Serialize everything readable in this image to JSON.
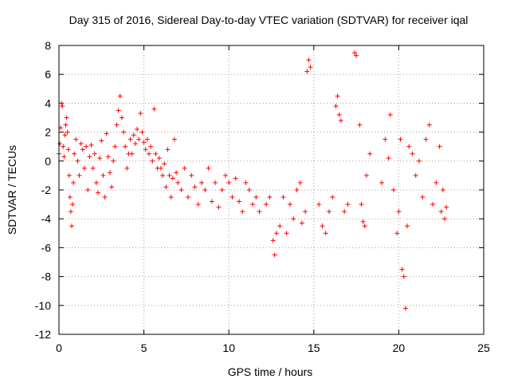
{
  "chart_data": {
    "type": "scatter",
    "title": "Day 315 of 2016, Sidereal Day-to-day VTEC variation (SDTVAR) for receiver iqal",
    "xlabel": "GPS time / hours",
    "ylabel": "SDTVAR / TECUs",
    "xlim": [
      0,
      25
    ],
    "ylim": [
      -12,
      8
    ],
    "xticks": [
      0,
      5,
      10,
      15,
      20,
      25
    ],
    "yticks": [
      -12,
      -10,
      -8,
      -6,
      -4,
      -2,
      0,
      2,
      4,
      6,
      8
    ],
    "grid": true,
    "marker": "+",
    "color": "#ff0000",
    "series": [
      {
        "name": "SDTVAR",
        "points": [
          [
            0.0,
            0.5
          ],
          [
            0.05,
            1.2
          ],
          [
            0.1,
            2.3
          ],
          [
            0.15,
            4.0
          ],
          [
            0.2,
            3.8
          ],
          [
            0.25,
            1.0
          ],
          [
            0.3,
            0.3
          ],
          [
            0.35,
            1.8
          ],
          [
            0.4,
            2.5
          ],
          [
            0.45,
            3.0
          ],
          [
            0.5,
            2.0
          ],
          [
            0.55,
            0.8
          ],
          [
            0.6,
            -1.0
          ],
          [
            0.65,
            -2.5
          ],
          [
            0.7,
            -3.5
          ],
          [
            0.75,
            -4.5
          ],
          [
            0.8,
            -3.0
          ],
          [
            0.85,
            -1.5
          ],
          [
            0.9,
            0.5
          ],
          [
            1.0,
            1.5
          ],
          [
            1.1,
            0.0
          ],
          [
            1.2,
            -1.0
          ],
          [
            1.3,
            1.2
          ],
          [
            1.4,
            0.8
          ],
          [
            1.5,
            -0.5
          ],
          [
            1.6,
            1.0
          ],
          [
            1.7,
            -2.0
          ],
          [
            1.8,
            0.3
          ],
          [
            1.9,
            1.1
          ],
          [
            2.0,
            -0.5
          ],
          [
            2.1,
            0.5
          ],
          [
            2.2,
            -1.5
          ],
          [
            2.3,
            -2.2
          ],
          [
            2.4,
            0.2
          ],
          [
            2.5,
            1.4
          ],
          [
            2.6,
            -1.0
          ],
          [
            2.7,
            -2.5
          ],
          [
            2.8,
            1.9
          ],
          [
            2.9,
            0.3
          ],
          [
            3.0,
            -0.8
          ],
          [
            3.1,
            -1.8
          ],
          [
            3.2,
            0.0
          ],
          [
            3.3,
            1.0
          ],
          [
            3.4,
            2.5
          ],
          [
            3.5,
            3.5
          ],
          [
            3.6,
            4.5
          ],
          [
            3.7,
            3.0
          ],
          [
            3.8,
            2.0
          ],
          [
            3.9,
            1.0
          ],
          [
            4.0,
            -0.5
          ],
          [
            4.1,
            0.5
          ],
          [
            4.2,
            1.5
          ],
          [
            4.3,
            0.5
          ],
          [
            4.4,
            1.8
          ],
          [
            4.5,
            1.2
          ],
          [
            4.6,
            2.2
          ],
          [
            4.7,
            1.5
          ],
          [
            4.8,
            3.3
          ],
          [
            4.9,
            2.0
          ],
          [
            5.0,
            1.3
          ],
          [
            5.1,
            0.8
          ],
          [
            5.2,
            1.5
          ],
          [
            5.3,
            0.5
          ],
          [
            5.4,
            1.0
          ],
          [
            5.5,
            0.0
          ],
          [
            5.6,
            3.6
          ],
          [
            5.7,
            0.5
          ],
          [
            5.8,
            -0.5
          ],
          [
            5.9,
            0.2
          ],
          [
            6.0,
            -0.5
          ],
          [
            6.1,
            -1.0
          ],
          [
            6.2,
            -0.2
          ],
          [
            6.3,
            -1.8
          ],
          [
            6.4,
            0.8
          ],
          [
            6.5,
            -1.0
          ],
          [
            6.6,
            -2.5
          ],
          [
            6.7,
            -1.2
          ],
          [
            6.8,
            1.5
          ],
          [
            6.9,
            -0.8
          ],
          [
            7.0,
            -1.5
          ],
          [
            7.2,
            -2.0
          ],
          [
            7.4,
            -0.5
          ],
          [
            7.6,
            -2.5
          ],
          [
            7.8,
            -1.0
          ],
          [
            8.0,
            -1.8
          ],
          [
            8.2,
            -3.0
          ],
          [
            8.4,
            -1.5
          ],
          [
            8.6,
            -2.0
          ],
          [
            8.8,
            -0.5
          ],
          [
            9.0,
            -2.8
          ],
          [
            9.2,
            -1.5
          ],
          [
            9.4,
            -3.2
          ],
          [
            9.6,
            -2.0
          ],
          [
            9.8,
            -1.0
          ],
          [
            10.0,
            -1.5
          ],
          [
            10.2,
            -2.5
          ],
          [
            10.4,
            -1.2
          ],
          [
            10.6,
            -2.8
          ],
          [
            10.8,
            -3.5
          ],
          [
            11.0,
            -1.5
          ],
          [
            11.2,
            -2.0
          ],
          [
            11.4,
            -3.0
          ],
          [
            11.6,
            -2.5
          ],
          [
            11.8,
            -3.5
          ],
          [
            12.2,
            -3.0
          ],
          [
            12.4,
            -2.5
          ],
          [
            12.6,
            -5.5
          ],
          [
            12.7,
            -6.5
          ],
          [
            12.8,
            -5.0
          ],
          [
            13.0,
            -4.5
          ],
          [
            13.2,
            -2.5
          ],
          [
            13.4,
            -5.0
          ],
          [
            13.6,
            -3.0
          ],
          [
            13.8,
            -4.0
          ],
          [
            14.0,
            -2.0
          ],
          [
            14.2,
            -1.5
          ],
          [
            14.3,
            -4.3
          ],
          [
            14.5,
            -3.5
          ],
          [
            14.6,
            6.2
          ],
          [
            14.7,
            7.0
          ],
          [
            14.8,
            6.5
          ],
          [
            15.3,
            -3.0
          ],
          [
            15.5,
            -4.5
          ],
          [
            15.7,
            -5.0
          ],
          [
            15.9,
            -3.5
          ],
          [
            16.1,
            -2.5
          ],
          [
            16.3,
            3.8
          ],
          [
            16.4,
            4.5
          ],
          [
            16.5,
            3.2
          ],
          [
            16.6,
            2.8
          ],
          [
            16.8,
            -3.5
          ],
          [
            17.0,
            -3.0
          ],
          [
            17.4,
            7.5
          ],
          [
            17.5,
            7.3
          ],
          [
            17.7,
            2.5
          ],
          [
            17.8,
            -3.0
          ],
          [
            17.9,
            -4.2
          ],
          [
            18.0,
            -4.5
          ],
          [
            18.1,
            -1.0
          ],
          [
            18.3,
            0.5
          ],
          [
            19.0,
            -1.5
          ],
          [
            19.2,
            1.5
          ],
          [
            19.4,
            0.2
          ],
          [
            19.5,
            3.2
          ],
          [
            19.7,
            -2.0
          ],
          [
            19.9,
            -5.0
          ],
          [
            20.0,
            -3.5
          ],
          [
            20.1,
            1.5
          ],
          [
            20.2,
            -7.5
          ],
          [
            20.3,
            -8.0
          ],
          [
            20.4,
            -10.2
          ],
          [
            20.5,
            -4.5
          ],
          [
            20.6,
            1.0
          ],
          [
            20.8,
            0.5
          ],
          [
            21.0,
            -1.0
          ],
          [
            21.2,
            0.0
          ],
          [
            21.4,
            -2.5
          ],
          [
            21.6,
            1.5
          ],
          [
            21.8,
            2.5
          ],
          [
            22.0,
            -3.0
          ],
          [
            22.2,
            -1.5
          ],
          [
            22.4,
            1.0
          ],
          [
            22.5,
            -3.5
          ],
          [
            22.6,
            -2.0
          ],
          [
            22.7,
            -4.0
          ],
          [
            22.8,
            -3.2
          ]
        ]
      }
    ]
  }
}
